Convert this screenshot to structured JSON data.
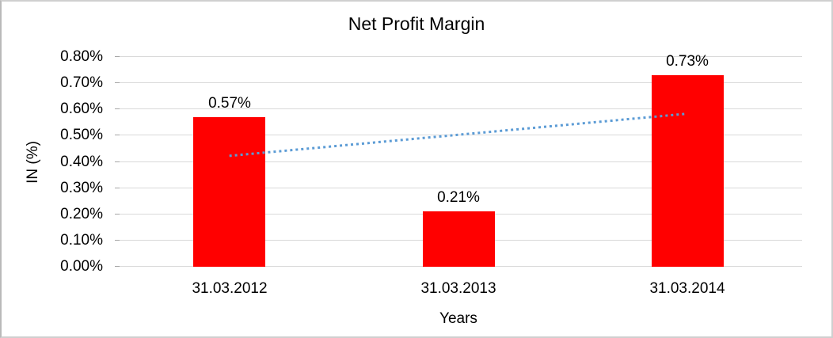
{
  "chart_data": {
    "type": "bar",
    "title": "Net Profit Margin",
    "xlabel": "Years",
    "ylabel": "IN (%)",
    "categories": [
      "31.03.2012",
      "31.03.2013",
      "31.03.2014"
    ],
    "values": [
      0.57,
      0.21,
      0.73
    ],
    "data_labels": [
      "0.57%",
      "0.21%",
      "0.73%"
    ],
    "ylim": [
      0,
      0.8
    ],
    "ytick_step": 0.1,
    "ytick_labels": [
      "0.00%",
      "0.10%",
      "0.20%",
      "0.30%",
      "0.40%",
      "0.50%",
      "0.60%",
      "0.70%",
      "0.80%"
    ],
    "grid": true,
    "legend": "none",
    "colors": {
      "bar": "#ff0000",
      "gridline": "#d9d9d9",
      "tick": "#a6a6a6",
      "trendline": "#5b9bd5",
      "text": "#000000",
      "frame_border": "#cfcfcf"
    },
    "trendline": {
      "type": "linear",
      "style": "dotted",
      "color": "#5b9bd5",
      "start_value": 0.423,
      "end_value": 0.583
    }
  }
}
